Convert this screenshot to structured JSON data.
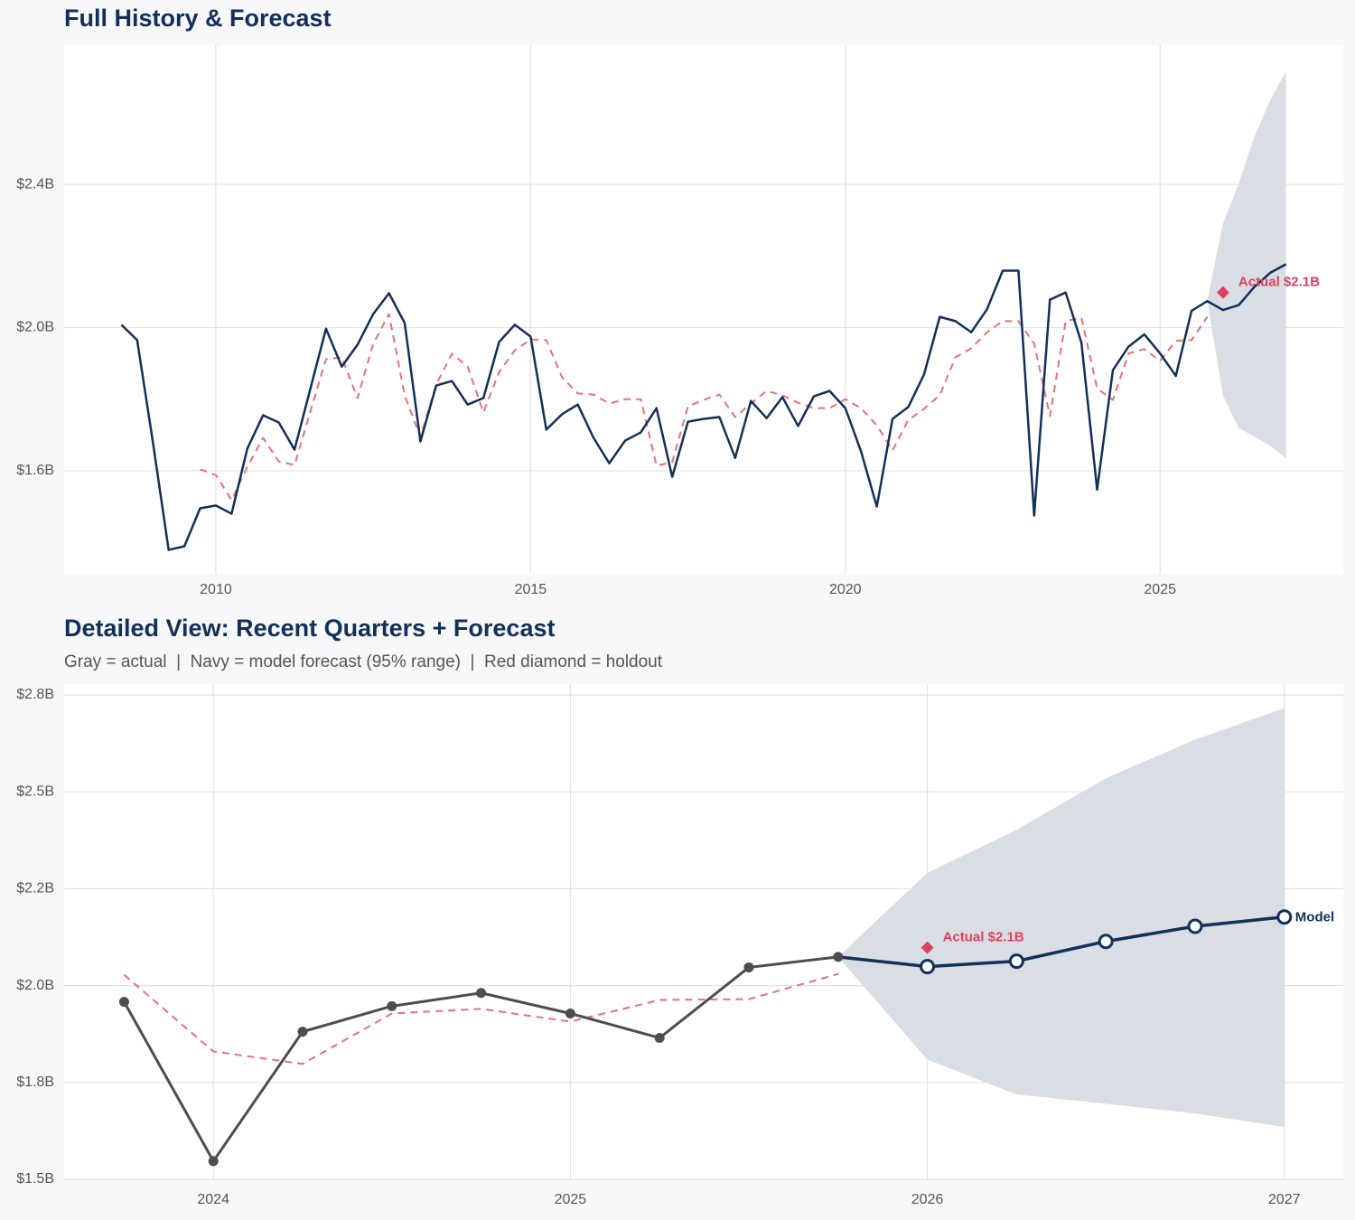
{
  "chart_data": [
    {
      "type": "line",
      "title": "Full History & Forecast",
      "x": [
        2008.5,
        2008.75,
        2009,
        2009.25,
        2009.5,
        2009.75,
        2010,
        2010.25,
        2010.5,
        2010.75,
        2011,
        2011.25,
        2011.5,
        2011.75,
        2012,
        2012.25,
        2012.5,
        2012.75,
        2013,
        2013.25,
        2013.5,
        2013.75,
        2014,
        2014.25,
        2014.5,
        2014.75,
        2015,
        2015.25,
        2015.5,
        2015.75,
        2016,
        2016.25,
        2016.5,
        2016.75,
        2017,
        2017.25,
        2017.5,
        2017.75,
        2018,
        2018.25,
        2018.5,
        2018.75,
        2019,
        2019.25,
        2019.5,
        2019.75,
        2020,
        2020.25,
        2020.5,
        2020.75,
        2021,
        2021.25,
        2021.5,
        2021.75,
        2022,
        2022.25,
        2022.5,
        2022.75,
        2023,
        2023.25,
        2023.5,
        2023.75,
        2024,
        2024.25,
        2024.5,
        2024.75,
        2025,
        2025.25,
        2025.5,
        2025.75,
        2026,
        2026.25,
        2026.5,
        2026.75,
        2027
      ],
      "xlim": [
        2007.59,
        2027.91
      ],
      "xticks": [
        2010,
        2015,
        2020,
        2025
      ],
      "ylim": [
        1.312,
        2.789
      ],
      "yticks": [
        {
          "value": 1.6,
          "label": "$1.6B"
        },
        {
          "value": 2.0,
          "label": "$2.0B"
        },
        {
          "value": 2.4,
          "label": "$2.4B"
        }
      ],
      "grid": true,
      "series": [
        {
          "color": "#12305a",
          "width": 2.5,
          "values": [
            2.008,
            1.965,
            1.68,
            1.379,
            1.389,
            1.495,
            1.503,
            1.48,
            1.662,
            1.755,
            1.735,
            1.659,
            1.828,
            1.997,
            1.891,
            1.952,
            2.038,
            2.096,
            2.013,
            1.682,
            1.838,
            1.851,
            1.785,
            1.803,
            1.96,
            2.008,
            1.975,
            1.715,
            1.758,
            1.785,
            1.692,
            1.621,
            1.684,
            1.707,
            1.775,
            1.583,
            1.737,
            1.745,
            1.75,
            1.636,
            1.795,
            1.747,
            1.806,
            1.725,
            1.808,
            1.823,
            1.775,
            1.654,
            1.5,
            1.745,
            1.778,
            1.869,
            2.03,
            2.018,
            1.987,
            2.051,
            2.159,
            2.159,
            1.475,
            2.078,
            2.098,
            1.958,
            1.547,
            1.881,
            1.947,
            1.981,
            1.928,
            1.865,
            2.047,
            2.074,
            2.049,
            2.063,
            2.114,
            2.153,
            2.177
          ]
        },
        {
          "color": "#e8707f",
          "dash": true,
          "width": 2,
          "values": [
            null,
            null,
            null,
            null,
            null,
            1.604,
            1.588,
            1.518,
            1.611,
            1.692,
            1.626,
            1.616,
            1.765,
            1.912,
            1.917,
            1.803,
            1.955,
            2.038,
            1.81,
            1.694,
            1.841,
            1.927,
            1.891,
            1.763,
            1.876,
            1.937,
            1.967,
            1.965,
            1.861,
            1.816,
            1.813,
            1.788,
            1.8,
            1.8,
            1.614,
            1.624,
            1.78,
            1.798,
            1.813,
            1.75,
            1.788,
            1.823,
            1.811,
            1.79,
            1.775,
            1.775,
            1.8,
            1.775,
            1.727,
            1.657,
            1.742,
            1.773,
            1.811,
            1.917,
            1.942,
            1.987,
            2.018,
            2.018,
            1.955,
            1.753,
            2.018,
            2.028,
            1.83,
            1.798,
            1.928,
            1.94,
            1.907,
            1.963,
            1.965,
            2.03,
            null,
            null,
            null,
            null,
            null
          ]
        }
      ],
      "band": {
        "color": "#d9dee4",
        "x": [
          2025.75,
          2026,
          2026.25,
          2026.5,
          2026.75,
          2027
        ],
        "lower": [
          2.074,
          1.809,
          1.719,
          1.695,
          1.67,
          1.635
        ],
        "upper": [
          2.074,
          2.291,
          2.402,
          2.535,
          2.635,
          2.716
        ]
      },
      "holdout": {
        "x": 2026,
        "value": 2.098,
        "label": "Actual $2.1B",
        "color": "#e0405f"
      }
    },
    {
      "type": "line",
      "title": "Detailed View: Recent Quarters + Forecast",
      "subtitle": "Gray = actual  |  Navy = model forecast (95% range)  |  Red diamond = holdout",
      "xlim": [
        2023.582,
        2027.165
      ],
      "xticks": [
        2024,
        2025,
        2026,
        2027
      ],
      "ylim": [
        1.5,
        2.778
      ],
      "yticks": [
        {
          "value": 1.5,
          "label": "$1.5B"
        },
        {
          "value": 1.75,
          "label": "$1.8B"
        },
        {
          "value": 2.0,
          "label": "$2.0B"
        },
        {
          "value": 2.25,
          "label": "$2.2B"
        },
        {
          "value": 2.5,
          "label": "$2.5B"
        },
        {
          "value": 2.75,
          "label": "$2.8B"
        }
      ],
      "grid": true,
      "series": [
        {
          "color": "#4d4d4d",
          "width": 3,
          "markers": "filled",
          "x": [
            2023.75,
            2024,
            2024.25,
            2024.5,
            2024.75,
            2025,
            2025.25,
            2025.5,
            2025.75
          ],
          "values": [
            1.958,
            1.547,
            1.881,
            1.947,
            1.981,
            1.928,
            1.865,
            2.047,
            2.074
          ]
        },
        {
          "color": "#12305a",
          "width": 3.5,
          "markers": "hollow",
          "label": "Model",
          "x": [
            2026,
            2026.25,
            2026.5,
            2026.75,
            2027
          ],
          "values": [
            2.049,
            2.063,
            2.114,
            2.153,
            2.177
          ]
        },
        {
          "color": "#e8707f",
          "dash": true,
          "width": 2,
          "x": [
            2023.75,
            2024,
            2024.25,
            2024.5,
            2024.75,
            2025,
            2025.25,
            2025.5,
            2025.75
          ],
          "values": [
            2.028,
            1.83,
            1.798,
            1.928,
            1.94,
            1.907,
            1.963,
            1.965,
            2.03
          ]
        }
      ],
      "band": {
        "color": "#d9dee4",
        "x": [
          2025.75,
          2026,
          2026.25,
          2026.5,
          2026.75,
          2027
        ],
        "lower": [
          2.074,
          1.809,
          1.719,
          1.695,
          1.67,
          1.635
        ],
        "upper": [
          2.074,
          2.291,
          2.402,
          2.535,
          2.635,
          2.716
        ]
      },
      "holdout": {
        "x": 2026,
        "value": 2.098,
        "label": "Actual $2.1B",
        "color": "#e0405f"
      }
    }
  ]
}
